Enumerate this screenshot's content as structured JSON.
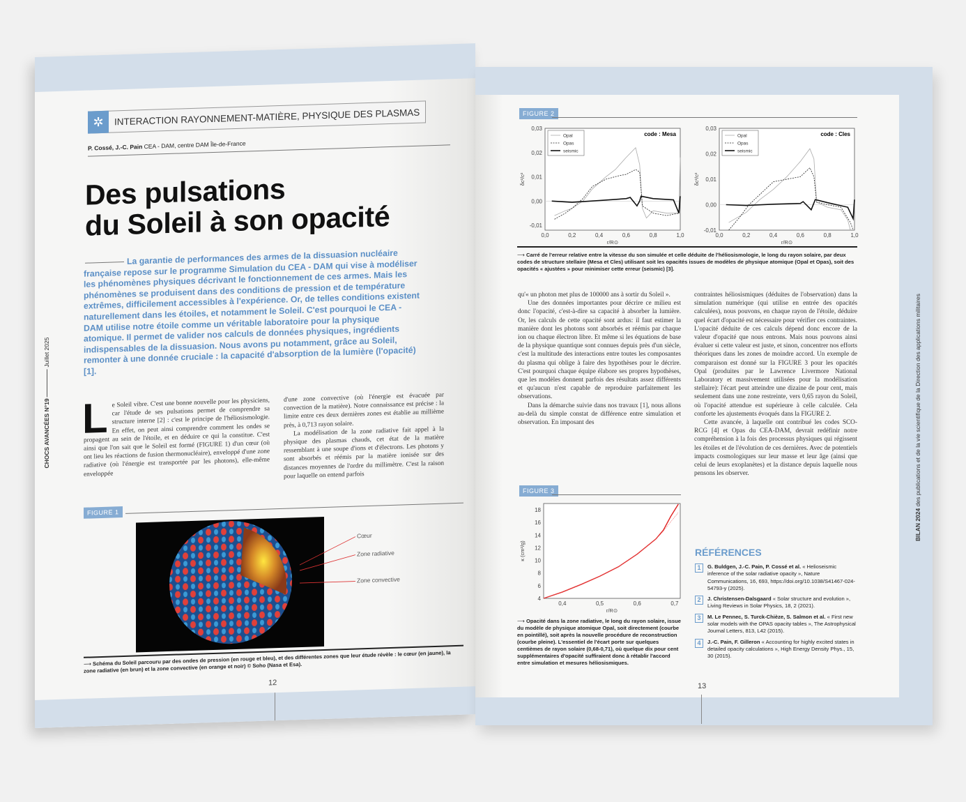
{
  "left_page": {
    "section": "INTERACTION RAYONNEMENT-MATIÈRE, PHYSIQUE DES PLASMAS",
    "section_icon": "atom-icon",
    "authors": "P. Cossé, J.-C. Pain",
    "affiliation": "CEA - DAM, centre DAM Île-de-France",
    "title_line1": "Des pulsations",
    "title_line2": "du Soleil à son opacité",
    "lead": "La garantie de performances des armes de la dissuasion nucléaire française repose sur le programme Simulation du CEA - DAM qui vise à modéliser les phénomènes physiques décrivant le fonctionnement de ces armes. Mais les phénomènes se produisent dans des conditions de pression et de température extrêmes, difficilement accessibles à l'expérience. Or, de telles conditions existent naturellement dans les étoiles, et notamment le Soleil. C'est pourquoi le CEA - DAM utilise notre étoile comme un véritable laboratoire pour la physique atomique. Il permet de valider nos calculs de données physiques, ingrédients indispensables de la dissuasion. Nous avons pu notamment, grâce au Soleil, remonter à une donnée cruciale : la capacité d'absorption de la lumière (l'opacité) [1].",
    "dropcap": "L",
    "col1": "e Soleil vibre. C'est une bonne nouvelle pour les physiciens, car l'étude de ses pulsations permet de comprendre sa structure interne [2] : c'est le principe de l'héliosismologie. En effet, on peut ainsi comprendre comment les ondes se propagent au sein de l'étoile, et en déduire ce qui la constitue. C'est ainsi que l'on sait que le Soleil est formé (FIGURE 1) d'un cœur (où ont lieu les réactions de fusion thermonucléaire), enveloppé d'une zone radiative (où l'énergie est transportée par les photons), elle-même enveloppée",
    "col2_p1": "d'une zone convective (où l'énergie est évacuée par convection de la matière). Notre connaissance est précise : la limite entre ces deux dernières zones est établie au millième près, à 0,713 rayon solaire.",
    "col2_p2": "La modélisation de la zone radiative fait appel à la physique des plasmas chauds, cet état de la matière ressemblant à une soupe d'ions et d'électrons. Les photons y sont absorbés et réémis par la matière ionisée sur des distances moyennes de l'ordre du millimètre. C'est la raison pour laquelle on entend parfois",
    "figure1": {
      "tag": "FIGURE 1",
      "labels": [
        "Cœur",
        "Zone radiative",
        "Zone convective"
      ],
      "caption": "Schéma du Soleil parcouru par des ondes de pression (en rouge et bleu), et des différentes zones que leur étude révèle : le cœur (en jaune), la zone radiative (en brun) et la zone convective (en orange et noir) © Soho (Nasa et Esa)."
    },
    "side_text": "CHOCS AVANCÉES N°19",
    "side_date": "Juillet 2025",
    "page_number": "12"
  },
  "right_page": {
    "figure2": {
      "tag": "FIGURE 2",
      "caption": "Carré de l'erreur relative entre la vitesse du son simulée et celle déduite de l'héliosismologie, le long du rayon solaire, par deux codes de structure stellaire (Mesa et Cles) utilisant soit les opacités issues de modèles de physique atomique (Opal et Opas), soit des opacités « ajustées » pour minimiser cette erreur (seismic) [3]."
    },
    "figure3": {
      "tag": "FIGURE 3",
      "caption": "Opacité dans la zone radiative, le long du rayon solaire, issue du modèle de physique atomique Opal, soit directement (courbe en pointillé), soit après la nouvelle procédure de reconstruction (courbe pleine). L'essentiel de l'écart porte sur quelques centièmes de rayon solaire (0,68-0,71), où quelque dix pour cent supplémentaires d'opacité suffiraient donc à rétablir l'accord entre simulation et mesures héliosismiques."
    },
    "col1": [
      "qu'« un photon met plus de 100000 ans à sortir du Soleil ».",
      "Une des données importantes pour décrire ce milieu est donc l'opacité, c'est-à-dire sa capacité à absorber la lumière. Or, les calculs de cette opacité sont ardus: il faut estimer la manière dont les photons sont absorbés et réémis par chaque ion ou chaque électron libre. Et même si les équations de base de la physique quantique sont connues depuis près d'un siècle, c'est la multitude des interactions entre toutes les composantes du plasma qui oblige à faire des hypothèses pour le décrire. C'est pourquoi chaque équipe élabore ses propres hypothèses, que les modèles donnent parfois des résultats assez différents et qu'aucun n'est capable de reproduire parfaitement les observations.",
      "Dans la démarche suivie dans nos travaux [1], nous allons au-delà du simple constat de différence entre simulation et observation. En imposant des"
    ],
    "col2": [
      "contraintes héliosismiques (déduites de l'observation) dans la simulation numérique (qui utilise en entrée des opacités calculées), nous pouvons, en chaque rayon de l'étoile, déduire quel écart d'opacité est nécessaire pour vérifier ces contraintes. L'opacité déduite de ces calculs dépend donc encore de la valeur d'opacité que nous entrons. Mais nous pouvons ainsi évaluer si cette valeur est juste, et sinon, concentrer nos efforts théoriques dans les zones de moindre accord. Un exemple de comparaison est donné sur la FIGURE 3 pour les opacités Opal (produites par le Lawrence Livermore National Laboratory et massivement utilisées pour la modélisation stellaire): l'écart peut atteindre une dizaine de pour cent, mais seulement dans une zone restreinte, vers 0,65 rayon du Soleil, où l'opacité attendue est supérieure à celle calculée. Cela conforte les ajustements évoqués dans la FIGURE 2.",
      "Cette avancée, à laquelle ont contribué les codes SCO-RCG [4] et Opas du CEA-DAM, devrait redéfinir notre compréhension à la fois des processus physiques qui régissent les étoiles et de l'évolution de ces dernières. Avec de potentiels impacts cosmologiques sur leur masse et leur âge (ainsi que celui de leurs exoplanètes) et la distance depuis laquelle nous pensons les observer."
    ],
    "references_title": "RÉFÉRENCES",
    "references": [
      {
        "n": "1",
        "authors": "G. Buldgen, J.-C. Pain, P. Cossé et al.",
        "text": "« Helioseismic inference of the solar radiative opacity », Nature Communications, 16, 693, https://doi.org/10.1038/S41467-024-54793-y (2025)."
      },
      {
        "n": "2",
        "authors": "J. Christensen-Dalsgaard",
        "text": "« Solar structure and evolution », Living Reviews in Solar Physics, 18, 2 (2021)."
      },
      {
        "n": "3",
        "authors": "M. Le Pennec, S. Turck-Chièze, S. Salmon et al.",
        "text": "« First new solar models with the OPAS opacity tables », The Astrophysical Journal Letters, 813, L42 (2015)."
      },
      {
        "n": "4",
        "authors": "J.-C. Pain, F. Gilleron",
        "text": "« Accounting for highly excited states in detailed opacity calculations », High Energy Density Phys., 15, 30 (2015)."
      }
    ],
    "spine_bold": "BILAN 2024",
    "spine_text": "des publications et de la vie scientifique de la Direction des applications militaires",
    "page_number": "13"
  },
  "chart_data": [
    {
      "type": "line",
      "title": "code : Mesa",
      "xlabel": "r/R⊙",
      "ylabel": "δc²/c²",
      "xlim": [
        0,
        1
      ],
      "ylim": [
        -0.012,
        0.03
      ],
      "xticks": [
        "0,0",
        "0,2",
        "0,4",
        "0,6",
        "0,8",
        "1,0"
      ],
      "yticks": [
        "-0,01",
        "0,00",
        "0,01",
        "0,02",
        "0,03"
      ],
      "legend": "top-left",
      "series": [
        {
          "name": "Opal",
          "style": "solid-light",
          "x": [
            0.07,
            0.15,
            0.2,
            0.28,
            0.35,
            0.45,
            0.52,
            0.6,
            0.67,
            0.7,
            0.72,
            0.75,
            0.8,
            0.9,
            0.99,
            1.0
          ],
          "y": [
            -0.006,
            -0.004,
            -0.003,
            0.0,
            0.005,
            0.01,
            0.013,
            0.018,
            0.022,
            0.015,
            -0.003,
            -0.007,
            -0.004,
            -0.005,
            -0.005,
            0.018
          ]
        },
        {
          "name": "Opas",
          "style": "dashed",
          "x": [
            0.07,
            0.15,
            0.2,
            0.28,
            0.35,
            0.45,
            0.55,
            0.6,
            0.67,
            0.7,
            0.72,
            0.8,
            0.9,
            0.99
          ],
          "y": [
            -0.0075,
            -0.005,
            -0.003,
            0.001,
            0.006,
            0.009,
            0.0105,
            0.011,
            0.013,
            0.012,
            -0.002,
            -0.005,
            -0.006,
            -0.005
          ]
        },
        {
          "name": "seismic",
          "style": "solid-bold",
          "x": [
            0.05,
            0.2,
            0.4,
            0.6,
            0.63,
            0.68,
            0.7,
            0.71,
            0.8,
            0.95,
            0.99,
            1.0
          ],
          "y": [
            0,
            -0.0005,
            0.0002,
            0.001,
            0.0015,
            -0.002,
            0,
            0.002,
            0.001,
            0.0005,
            -0.005,
            0.002
          ]
        }
      ]
    },
    {
      "type": "line",
      "title": "code : Cles",
      "xlabel": "r/R⊙",
      "ylabel": "δc²/c²",
      "xlim": [
        0,
        1
      ],
      "ylim": [
        -0.01,
        0.03
      ],
      "xticks": [
        "0,0",
        "0,2",
        "0,4",
        "0,6",
        "0,8",
        "1,0"
      ],
      "yticks": [
        "-0,01",
        "0,00",
        "0,01",
        "0,02",
        "0,03"
      ],
      "legend": "top-left",
      "series": [
        {
          "name": "Opal",
          "style": "solid-light",
          "x": [
            0.07,
            0.2,
            0.3,
            0.4,
            0.5,
            0.6,
            0.67,
            0.7,
            0.72,
            0.8,
            0.9,
            0.95,
            0.97
          ],
          "y": [
            -0.007,
            -0.003,
            0.002,
            0.006,
            0.011,
            0.017,
            0.022,
            0.018,
            0.001,
            -0.001,
            -0.002,
            -0.006,
            -0.01
          ]
        },
        {
          "name": "Opas",
          "style": "dashed",
          "x": [
            0.07,
            0.15,
            0.22,
            0.3,
            0.4,
            0.5,
            0.6,
            0.67,
            0.7,
            0.72,
            0.8,
            0.9,
            0.97,
            0.99
          ],
          "y": [
            -0.01,
            -0.005,
            0,
            0.004,
            0.009,
            0.01,
            0.011,
            0.0145,
            0.011,
            0.001,
            0,
            -0.001,
            -0.007,
            -0.01
          ]
        },
        {
          "name": "seismic",
          "style": "solid-bold",
          "x": [
            0.05,
            0.2,
            0.4,
            0.6,
            0.62,
            0.68,
            0.71,
            0.8,
            0.95,
            0.99,
            1.0
          ],
          "y": [
            0,
            -0.0003,
            0.0002,
            0.0005,
            0.0012,
            -0.002,
            0.002,
            0.0008,
            -0.001,
            -0.0055,
            0.002
          ]
        }
      ]
    },
    {
      "type": "line",
      "xlabel": "r/R⊙",
      "ylabel": "κ (cm²/g)",
      "xlim": [
        0.35,
        0.715
      ],
      "ylim": [
        4,
        19
      ],
      "xticks": [
        "0,4",
        "0,5",
        "0,6",
        "0,7"
      ],
      "yticks": [
        "4",
        "6",
        "8",
        "10",
        "12",
        "14",
        "16",
        "18"
      ],
      "color": "#e02020",
      "series": [
        {
          "style": "solid",
          "x": [
            0.35,
            0.4,
            0.45,
            0.5,
            0.55,
            0.6,
            0.65,
            0.67,
            0.69,
            0.71
          ],
          "y": [
            4,
            5,
            6.2,
            7.5,
            9,
            11,
            13.4,
            14.8,
            17,
            18.9
          ]
        },
        {
          "style": "dotted",
          "x": [
            0.35,
            0.4,
            0.45,
            0.5,
            0.55,
            0.6,
            0.65,
            0.665,
            0.71
          ],
          "y": [
            4,
            5,
            6.2,
            7.5,
            9,
            11,
            13.4,
            14.3,
            17.6
          ]
        }
      ]
    }
  ]
}
